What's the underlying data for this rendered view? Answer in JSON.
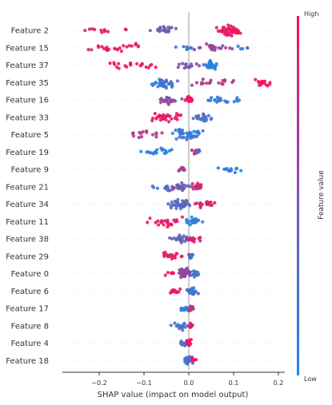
{
  "chart_data": {
    "type": "scatter",
    "subtype": "shap-beeswarm",
    "xlabel": "SHAP value (impact on model output)",
    "xlim": [
      -0.285,
      0.205
    ],
    "xticks": [
      -0.2,
      -0.1,
      0.0,
      0.1,
      0.2
    ],
    "xtick_labels": [
      "−0.2",
      "−0.1",
      "0.0",
      "0.1",
      "0.2"
    ],
    "colorbar": {
      "label": "Feature value",
      "high_label": "High",
      "low_label": "Low",
      "low_color": "#1e88e5",
      "high_color": "#ff0d57"
    },
    "features": [
      {
        "name": "Feature 2",
        "groups": [
          {
            "c": -0.06,
            "w": 0.03,
            "v": 0.3,
            "n": 25
          },
          {
            "c": 0.09,
            "w": 0.025,
            "v": 0.9,
            "n": 45
          },
          {
            "c": -0.19,
            "w": 0.07,
            "v": 0.85,
            "n": 12
          }
        ]
      },
      {
        "name": "Feature 15",
        "groups": [
          {
            "c": 0.06,
            "w": 0.03,
            "v": 0.5,
            "n": 25
          },
          {
            "c": -0.16,
            "w": 0.08,
            "v": 0.9,
            "n": 25
          },
          {
            "c": 0.0,
            "w": 0.02,
            "v": 0.15,
            "n": 8
          },
          {
            "c": 0.13,
            "w": 0.03,
            "v": 0.1,
            "n": 5
          }
        ]
      },
      {
        "name": "Feature 37",
        "groups": [
          {
            "c": 0.05,
            "w": 0.017,
            "v": 0.05,
            "n": 30
          },
          {
            "c": -0.12,
            "w": 0.06,
            "v": 0.9,
            "n": 22
          },
          {
            "c": 0.0,
            "w": 0.03,
            "v": 0.45,
            "n": 14
          }
        ]
      },
      {
        "name": "Feature 35",
        "groups": [
          {
            "c": -0.05,
            "w": 0.03,
            "v": 0.15,
            "n": 35
          },
          {
            "c": 0.05,
            "w": 0.05,
            "v": 0.6,
            "n": 18
          },
          {
            "c": 0.16,
            "w": 0.02,
            "v": 0.95,
            "n": 18
          }
        ]
      },
      {
        "name": "Feature 16",
        "groups": [
          {
            "c": -0.05,
            "w": 0.03,
            "v": 0.5,
            "n": 25
          },
          {
            "c": 0.0,
            "w": 0.01,
            "v": 0.95,
            "n": 18
          },
          {
            "c": 0.08,
            "w": 0.04,
            "v": 0.1,
            "n": 22
          }
        ]
      },
      {
        "name": "Feature 33",
        "groups": [
          {
            "c": -0.05,
            "w": 0.035,
            "v": 0.9,
            "n": 30
          },
          {
            "c": 0.03,
            "w": 0.02,
            "v": 0.2,
            "n": 25
          }
        ]
      },
      {
        "name": "Feature 5",
        "groups": [
          {
            "c": 0.0,
            "w": 0.035,
            "v": 0.1,
            "n": 40
          },
          {
            "c": -0.1,
            "w": 0.04,
            "v": 0.65,
            "n": 15
          }
        ]
      },
      {
        "name": "Feature 19",
        "groups": [
          {
            "c": -0.07,
            "w": 0.035,
            "v": 0.05,
            "n": 20
          },
          {
            "c": 0.015,
            "w": 0.01,
            "v": 0.95,
            "n": 10
          },
          {
            "c": 0.02,
            "w": 0.01,
            "v": 0.3,
            "n": 8
          }
        ]
      },
      {
        "name": "Feature 9",
        "groups": [
          {
            "c": 0.09,
            "w": 0.025,
            "v": 0.05,
            "n": 15
          },
          {
            "c": -0.015,
            "w": 0.008,
            "v": 0.6,
            "n": 12
          }
        ]
      },
      {
        "name": "Feature 21",
        "groups": [
          {
            "c": -0.02,
            "w": 0.03,
            "v": 0.35,
            "n": 30
          },
          {
            "c": 0.02,
            "w": 0.015,
            "v": 0.8,
            "n": 15
          },
          {
            "c": -0.06,
            "w": 0.02,
            "v": 0.1,
            "n": 5
          }
        ]
      },
      {
        "name": "Feature 34",
        "groups": [
          {
            "c": -0.02,
            "w": 0.025,
            "v": 0.25,
            "n": 35
          },
          {
            "c": 0.04,
            "w": 0.025,
            "v": 0.85,
            "n": 20
          }
        ]
      },
      {
        "name": "Feature 11",
        "groups": [
          {
            "c": -0.05,
            "w": 0.04,
            "v": 0.9,
            "n": 25
          },
          {
            "c": 0.01,
            "w": 0.015,
            "v": 0.1,
            "n": 25
          }
        ]
      },
      {
        "name": "Feature 38",
        "groups": [
          {
            "c": -0.02,
            "w": 0.02,
            "v": 0.3,
            "n": 25
          },
          {
            "c": 0.01,
            "w": 0.015,
            "v": 0.85,
            "n": 15
          }
        ]
      },
      {
        "name": "Feature 29",
        "groups": [
          {
            "c": -0.03,
            "w": 0.025,
            "v": 0.9,
            "n": 20
          },
          {
            "c": 0.005,
            "w": 0.005,
            "v": 0.1,
            "n": 10
          }
        ]
      },
      {
        "name": "Feature 0",
        "groups": [
          {
            "c": -0.01,
            "w": 0.015,
            "v": 0.5,
            "n": 35
          },
          {
            "c": 0.015,
            "w": 0.012,
            "v": 0.2,
            "n": 15
          },
          {
            "c": -0.04,
            "w": 0.01,
            "v": 0.9,
            "n": 6
          }
        ]
      },
      {
        "name": "Feature 6",
        "groups": [
          {
            "c": -0.03,
            "w": 0.015,
            "v": 0.9,
            "n": 15
          },
          {
            "c": 0.005,
            "w": 0.012,
            "v": 0.15,
            "n": 25
          }
        ]
      },
      {
        "name": "Feature 17",
        "groups": [
          {
            "c": -0.01,
            "w": 0.008,
            "v": 0.1,
            "n": 15
          },
          {
            "c": 0.005,
            "w": 0.006,
            "v": 0.7,
            "n": 15
          }
        ]
      },
      {
        "name": "Feature 8",
        "groups": [
          {
            "c": -0.02,
            "w": 0.02,
            "v": 0.2,
            "n": 18
          },
          {
            "c": 0.005,
            "w": 0.005,
            "v": 0.9,
            "n": 12
          }
        ]
      },
      {
        "name": "Feature 4",
        "groups": [
          {
            "c": -0.01,
            "w": 0.01,
            "v": 0.15,
            "n": 15
          },
          {
            "c": 0.0,
            "w": 0.005,
            "v": 0.95,
            "n": 20
          }
        ]
      },
      {
        "name": "Feature 18",
        "groups": [
          {
            "c": 0.0,
            "w": 0.01,
            "v": 0.2,
            "n": 25
          },
          {
            "c": 0.01,
            "w": 0.008,
            "v": 0.9,
            "n": 8
          }
        ]
      }
    ]
  }
}
